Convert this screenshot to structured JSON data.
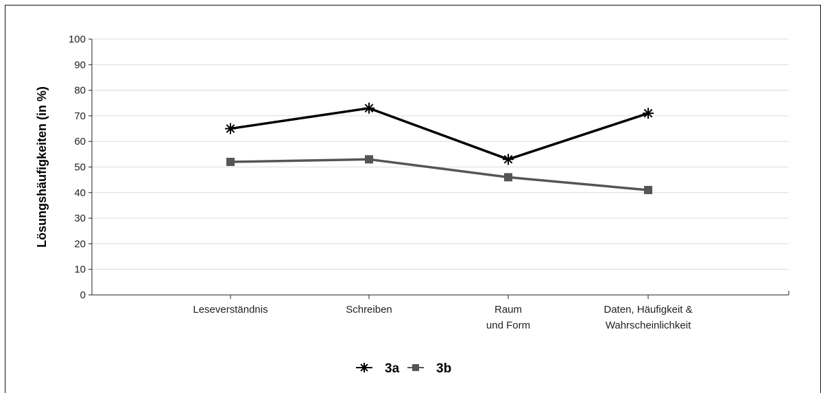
{
  "chart_data": {
    "type": "line",
    "categories": [
      [
        "Leseverständnis"
      ],
      [
        "Schreiben"
      ],
      [
        "Raum",
        "und Form"
      ],
      [
        "Daten, Häufigkeit &",
        "Wahrscheinlichkeit"
      ]
    ],
    "series": [
      {
        "name": "3a",
        "values": [
          65,
          73,
          53,
          71
        ],
        "color": "#000000",
        "marker": "asterisk"
      },
      {
        "name": "3b",
        "values": [
          52,
          53,
          46,
          41
        ],
        "color": "#555555",
        "marker": "square"
      }
    ],
    "ylabel": "Lösungshäufigkeiten (in %)",
    "xlabel": "",
    "ylim": [
      0,
      100
    ],
    "yticks": [
      0,
      10,
      20,
      30,
      40,
      50,
      60,
      70,
      80,
      90,
      100
    ],
    "grid": true,
    "legend": "bottom-center"
  }
}
